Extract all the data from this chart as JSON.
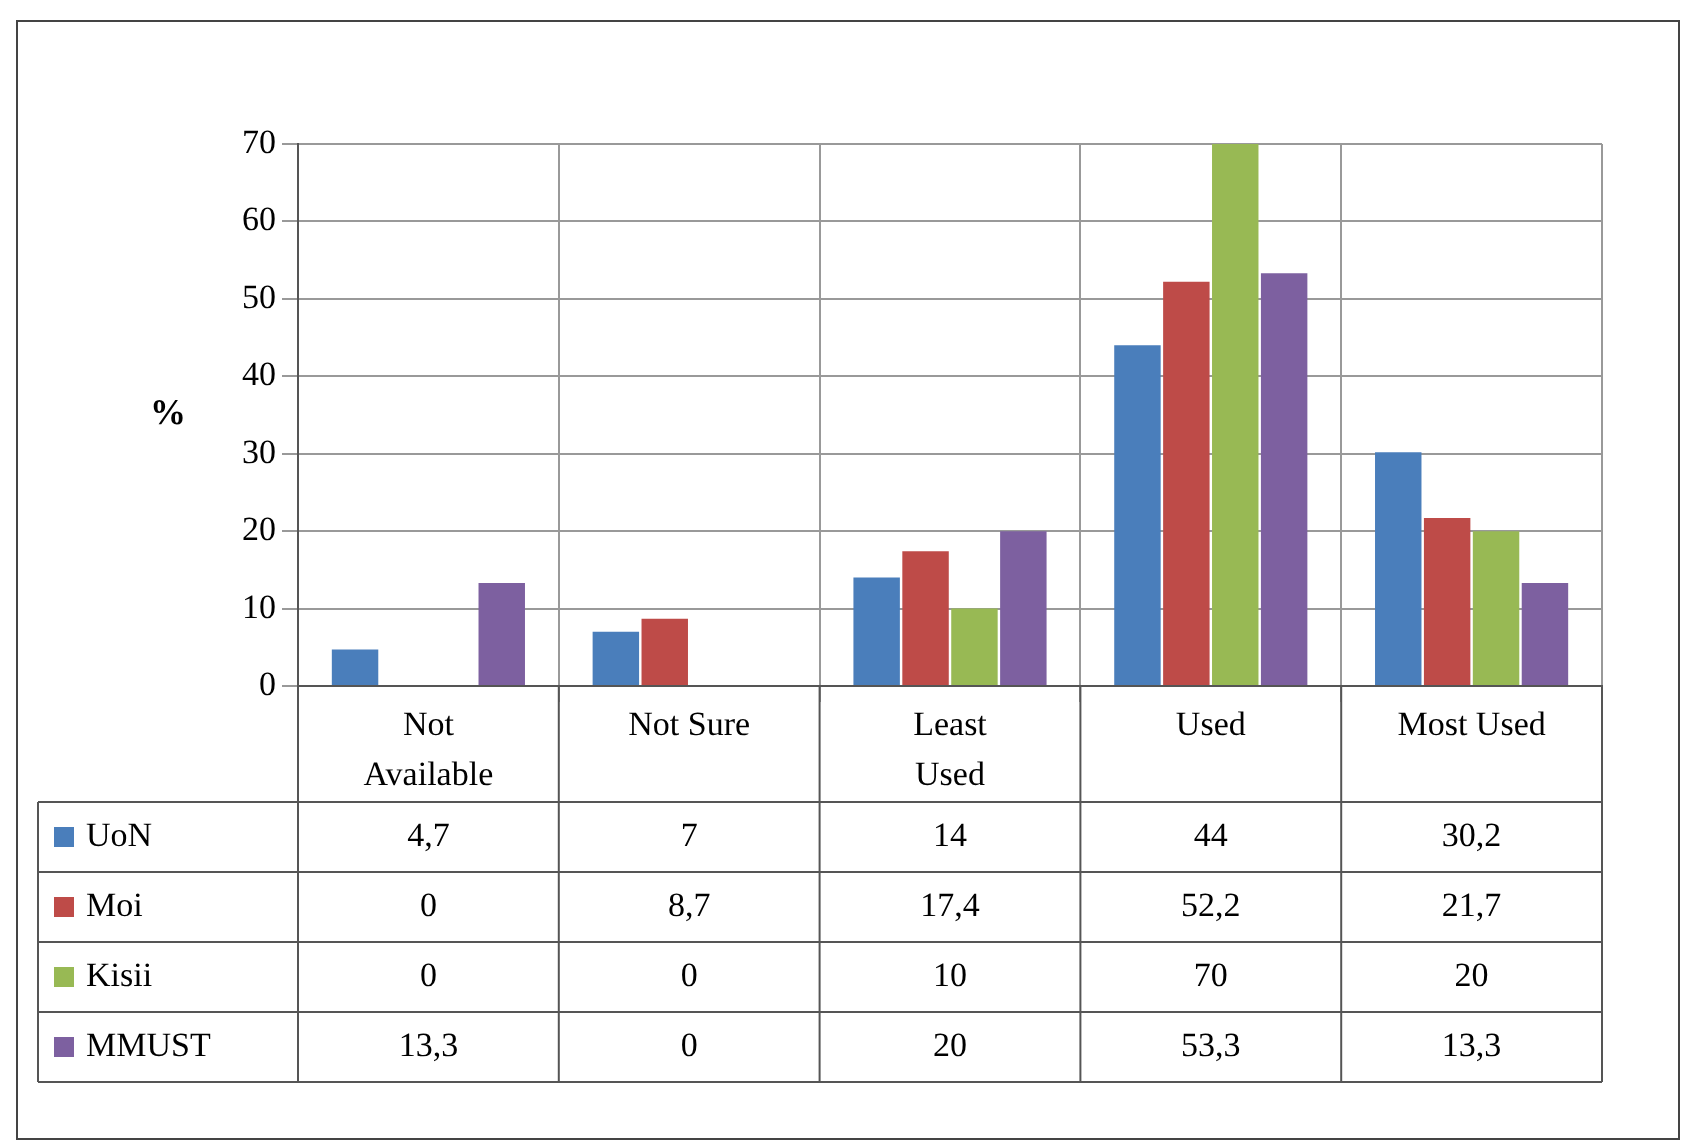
{
  "chart_data": {
    "type": "bar",
    "ylabel": "%",
    "categories": [
      "Not Available",
      "Not Sure",
      "Least Used",
      "Used",
      "Most Used"
    ],
    "series": [
      {
        "name": "UoN",
        "color": "#4a7ebb",
        "values": [
          4.7,
          7,
          14,
          44,
          30.2
        ],
        "value_labels": [
          "4,7",
          "7",
          "14",
          "44",
          "30,2"
        ]
      },
      {
        "name": "Moi",
        "color": "#be4b48",
        "values": [
          0,
          8.7,
          17.4,
          52.2,
          21.7
        ],
        "value_labels": [
          "0",
          "8,7",
          "17,4",
          "52,2",
          "21,7"
        ]
      },
      {
        "name": "Kisii",
        "color": "#98b954",
        "values": [
          0,
          0,
          10,
          70,
          20
        ],
        "value_labels": [
          "0",
          "0",
          "10",
          "70",
          "20"
        ]
      },
      {
        "name": "MMUST",
        "color": "#7d60a0",
        "values": [
          13.3,
          0,
          20,
          53.3,
          13.3
        ],
        "value_labels": [
          "13,3",
          "0",
          "20",
          "53,3",
          "13,3"
        ]
      }
    ],
    "ylim": [
      0,
      70
    ],
    "yticks": [
      0,
      10,
      20,
      30,
      40,
      50,
      60,
      70
    ],
    "grid": true,
    "legend": "bottom"
  }
}
